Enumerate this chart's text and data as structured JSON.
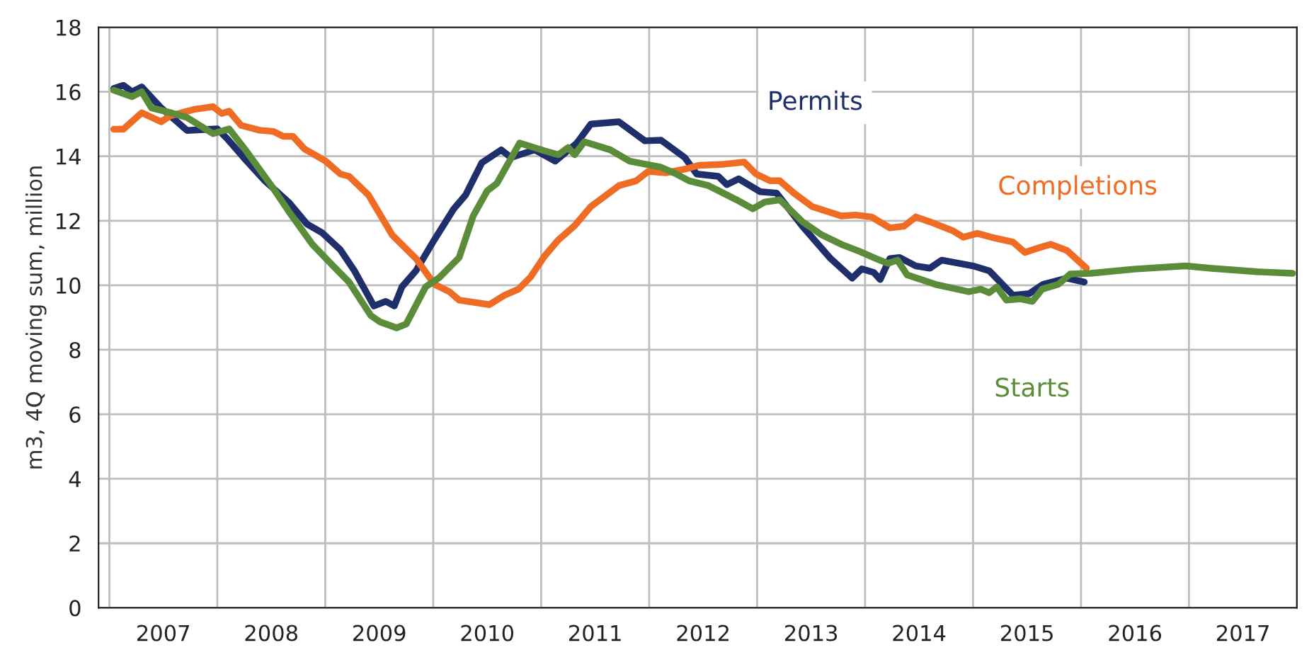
{
  "chart_data": {
    "type": "line",
    "ylabel": "m3, 4Q moving sum, million",
    "xlim": [
      2006.9,
      2018.0
    ],
    "ylim": [
      0,
      18
    ],
    "yticks": [
      0,
      2,
      4,
      6,
      8,
      10,
      12,
      14,
      16,
      18
    ],
    "xticks": [
      {
        "value": 2007,
        "label": null
      },
      {
        "value": 2007.5,
        "label": "2007"
      },
      {
        "value": 2008,
        "label": null
      },
      {
        "value": 2008.5,
        "label": "2008"
      },
      {
        "value": 2009,
        "label": null
      },
      {
        "value": 2009.5,
        "label": "2009"
      },
      {
        "value": 2010,
        "label": null
      },
      {
        "value": 2010.5,
        "label": "2010"
      },
      {
        "value": 2011,
        "label": null
      },
      {
        "value": 2011.5,
        "label": "2011"
      },
      {
        "value": 2012,
        "label": null
      },
      {
        "value": 2012.5,
        "label": "2012"
      },
      {
        "value": 2013,
        "label": null
      },
      {
        "value": 2013.5,
        "label": "2013"
      },
      {
        "value": 2014,
        "label": null
      },
      {
        "value": 2014.5,
        "label": "2014"
      },
      {
        "value": 2015,
        "label": null
      },
      {
        "value": 2015.5,
        "label": "2015"
      },
      {
        "value": 2016,
        "label": null
      },
      {
        "value": 2016.5,
        "label": "2016"
      },
      {
        "value": 2017,
        "label": null
      },
      {
        "value": 2017.5,
        "label": "2017"
      },
      {
        "value": 2018,
        "label": null
      }
    ],
    "grid": true,
    "legend": false,
    "line_style": "solid",
    "marker": "none",
    "series": [
      {
        "name": "Permits",
        "color": "#1f2f6b",
        "x": [
          2007.04,
          2007.13,
          2007.21,
          2007.3,
          2007.48,
          2007.72,
          2008.0,
          2008.09,
          2008.26,
          2008.44,
          2008.66,
          2008.83,
          2008.97,
          2009.14,
          2009.27,
          2009.45,
          2009.56,
          2009.64,
          2009.71,
          2009.84,
          2010.01,
          2010.19,
          2010.3,
          2010.45,
          2010.63,
          2010.72,
          2010.94,
          2011.13,
          2011.33,
          2011.46,
          2011.72,
          2011.96,
          2012.11,
          2012.33,
          2012.44,
          2012.64,
          2012.72,
          2012.83,
          2013.03,
          2013.18,
          2013.42,
          2013.68,
          2013.88,
          2013.97,
          2014.08,
          2014.14,
          2014.23,
          2014.32,
          2014.47,
          2014.6,
          2014.71,
          2015.0,
          2015.15,
          2015.37,
          2015.52,
          2015.65,
          2015.87,
          2016.03
        ],
        "values": [
          16.1,
          16.2,
          16.0,
          16.15,
          15.5,
          14.8,
          14.85,
          14.55,
          13.9,
          13.24,
          12.58,
          11.9,
          11.63,
          11.1,
          10.45,
          9.36,
          9.5,
          9.36,
          9.95,
          10.45,
          11.41,
          12.37,
          12.8,
          13.8,
          14.2,
          13.96,
          14.2,
          13.85,
          14.41,
          15.0,
          15.07,
          14.48,
          14.5,
          13.96,
          13.45,
          13.38,
          13.12,
          13.3,
          12.9,
          12.86,
          11.83,
          10.83,
          10.22,
          10.51,
          10.4,
          10.18,
          10.83,
          10.86,
          10.6,
          10.53,
          10.78,
          10.6,
          10.45,
          9.69,
          9.74,
          10.03,
          10.22,
          10.1
        ]
      },
      {
        "name": "Completions",
        "color": "#ee6c24",
        "x": [
          2007.04,
          2007.13,
          2007.3,
          2007.48,
          2007.56,
          2007.78,
          2007.96,
          2008.04,
          2008.11,
          2008.22,
          2008.39,
          2008.52,
          2008.61,
          2008.7,
          2008.81,
          2009.0,
          2009.14,
          2009.22,
          2009.4,
          2009.62,
          2009.84,
          2010.01,
          2010.15,
          2010.24,
          2010.52,
          2010.66,
          2010.79,
          2010.9,
          2011.03,
          2011.16,
          2011.31,
          2011.46,
          2011.72,
          2011.88,
          2011.99,
          2012.16,
          2012.33,
          2012.46,
          2012.68,
          2012.88,
          2012.99,
          2013.12,
          2013.21,
          2013.34,
          2013.51,
          2013.78,
          2013.91,
          2014.06,
          2014.23,
          2014.36,
          2014.47,
          2014.6,
          2014.82,
          2014.91,
          2015.04,
          2015.17,
          2015.37,
          2015.48,
          2015.61,
          2015.72,
          2015.87,
          2016.05
        ],
        "values": [
          14.84,
          14.84,
          15.35,
          15.07,
          15.25,
          15.45,
          15.54,
          15.33,
          15.4,
          14.96,
          14.81,
          14.77,
          14.62,
          14.62,
          14.22,
          13.86,
          13.45,
          13.38,
          12.8,
          11.56,
          10.83,
          10.03,
          9.8,
          9.54,
          9.4,
          9.69,
          9.88,
          10.25,
          10.9,
          11.41,
          11.85,
          12.44,
          13.09,
          13.24,
          13.53,
          13.49,
          13.6,
          13.72,
          13.75,
          13.82,
          13.45,
          13.24,
          13.24,
          12.86,
          12.44,
          12.15,
          12.18,
          12.12,
          11.78,
          11.83,
          12.12,
          11.97,
          11.68,
          11.49,
          11.61,
          11.49,
          11.34,
          11.02,
          11.16,
          11.27,
          11.08,
          10.53
        ]
      },
      {
        "name": "Starts",
        "color": "#5b8c3a",
        "x": [
          2007.04,
          2007.21,
          2007.3,
          2007.39,
          2007.56,
          2007.72,
          2007.96,
          2008.11,
          2008.26,
          2008.52,
          2008.66,
          2008.88,
          2009.05,
          2009.22,
          2009.42,
          2009.51,
          2009.66,
          2009.75,
          2009.93,
          2010.06,
          2010.24,
          2010.37,
          2010.5,
          2010.59,
          2010.8,
          2011.03,
          2011.16,
          2011.25,
          2011.31,
          2011.4,
          2011.64,
          2011.82,
          2012.11,
          2012.24,
          2012.37,
          2012.55,
          2012.81,
          2012.96,
          2013.07,
          2013.21,
          2013.42,
          2013.6,
          2013.78,
          2013.95,
          2014.12,
          2014.21,
          2014.3,
          2014.39,
          2014.65,
          2014.96,
          2015.07,
          2015.15,
          2015.22,
          2015.31,
          2015.44,
          2015.55,
          2015.64,
          2015.79,
          2015.9,
          2016.09,
          2016.49,
          2016.97,
          2017.19,
          2017.63,
          2017.96
        ],
        "values": [
          16.05,
          15.85,
          16.0,
          15.5,
          15.36,
          15.2,
          14.7,
          14.85,
          14.2,
          13.0,
          12.3,
          11.27,
          10.68,
          10.1,
          9.07,
          8.86,
          8.68,
          8.8,
          9.95,
          10.25,
          10.86,
          12.15,
          12.93,
          13.16,
          14.41,
          14.17,
          14.05,
          14.27,
          14.05,
          14.45,
          14.2,
          13.85,
          13.66,
          13.47,
          13.24,
          13.09,
          12.65,
          12.37,
          12.58,
          12.65,
          11.97,
          11.56,
          11.27,
          11.05,
          10.8,
          10.68,
          10.78,
          10.32,
          10.03,
          9.8,
          9.88,
          9.77,
          9.95,
          9.54,
          9.58,
          9.5,
          9.88,
          10.03,
          10.35,
          10.37,
          10.5,
          10.6,
          10.53,
          10.42,
          10.37
        ]
      }
    ]
  }
}
